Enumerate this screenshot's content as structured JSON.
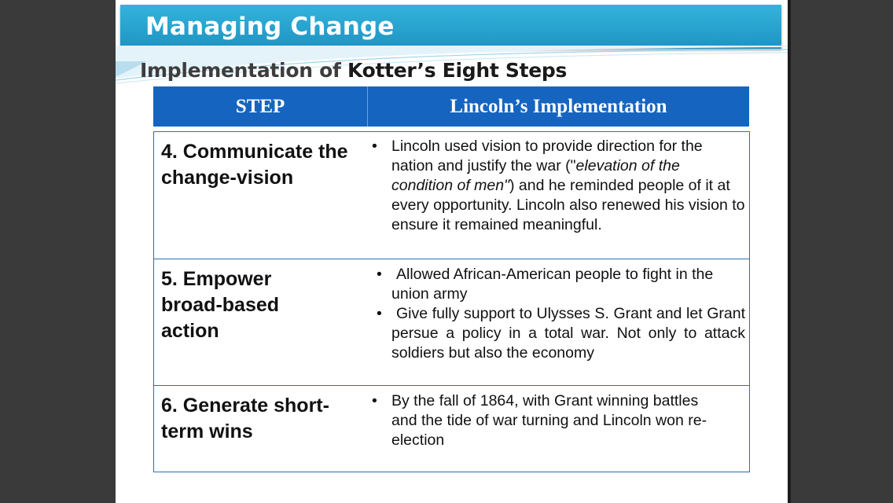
{
  "slide": {
    "title": "Managing Change",
    "subtitle_prefix": "Implementation of ",
    "subtitle_bold": "Kotter’s Eight Steps",
    "colors": {
      "title_bar": "#1f93c2",
      "table_header": "#1565c0",
      "table_border": "#2c6fb3",
      "background": "#3a3a3a"
    }
  },
  "table": {
    "headers": [
      "STEP",
      "Lincoln’s Implementation"
    ],
    "rows": [
      {
        "step": "4. Communicate the change-vision",
        "bullets": [
          {
            "parts": [
              {
                "text": "Lincoln used vision to provide direction for the nation and justify the war (\"",
                "italic": false
              },
              {
                "text": "elevation of the condition of men\"",
                "italic": true
              },
              {
                "text": ") and he reminded people of it at every opportunity. Lincoln also renewed his vision to ensure it remained meaningful.",
                "italic": false
              }
            ]
          }
        ]
      },
      {
        "step": "5. Empower broad-based action",
        "bullets": [
          {
            "parts": [
              {
                "text": "Allowed African-American people to fight in the union army",
                "italic": false
              }
            ]
          },
          {
            "parts": [
              {
                "text": "Give fully support to Ulysses S. Grant and let Grant persue a policy in a total war. Not only to attack soldiers but also the economy",
                "italic": false
              }
            ]
          }
        ]
      },
      {
        "step": "6. Generate short-term wins",
        "bullets": [
          {
            "parts": [
              {
                "text": "By the fall of 1864, with Grant winning battles and the tide of war turning and  Lincoln won re-election",
                "italic": false
              }
            ]
          }
        ]
      }
    ]
  }
}
